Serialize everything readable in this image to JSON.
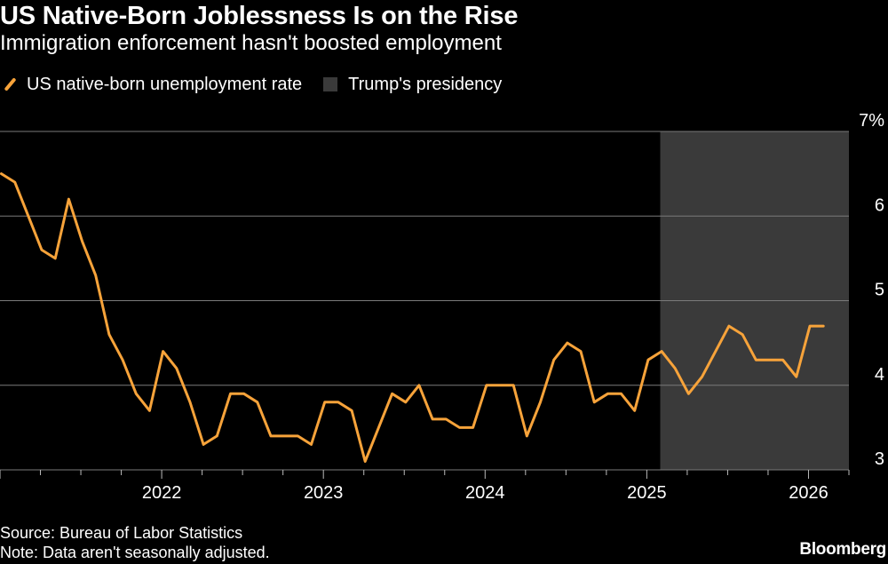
{
  "header": {
    "title": "US Native-Born Joblessness Is on the Rise",
    "subtitle": "Immigration enforcement hasn't boosted employment"
  },
  "legend": {
    "series_label": "US native-born unemployment rate",
    "shade_label": "Trump's presidency"
  },
  "footer": {
    "source": "Source: Bureau of Labor Statistics",
    "note": "Note: Data aren't seasonally adjusted.",
    "brand": "Bloomberg"
  },
  "colors": {
    "line": "#f7a33a",
    "shade": "#3a3a3a",
    "grid": "#7a7a7a",
    "background": "#000000"
  },
  "chart_data": {
    "type": "line",
    "title": "US Native-Born Joblessness Is on the Rise",
    "ylim": [
      3,
      7
    ],
    "y_ticks": [
      3,
      4,
      5,
      6,
      7
    ],
    "y_tick_labels": [
      "3",
      "4",
      "5",
      "6",
      "7%"
    ],
    "x_ticks": [
      2022,
      2023,
      2024,
      2025,
      2026
    ],
    "x_tick_labels": [
      "2022",
      "2023",
      "2024",
      "2025",
      "2026"
    ],
    "xlim": [
      2021.0,
      2026.25
    ],
    "shade_range": [
      2025.083,
      2026.25
    ],
    "series": [
      {
        "name": "US native-born unemployment rate",
        "start": [
          2021,
          1
        ],
        "values": [
          6.5,
          6.4,
          6.0,
          5.6,
          5.5,
          6.2,
          5.7,
          5.3,
          4.6,
          4.3,
          3.9,
          3.7,
          4.4,
          4.2,
          3.8,
          3.3,
          3.4,
          3.9,
          3.9,
          3.8,
          3.4,
          3.4,
          3.4,
          3.3,
          3.8,
          3.8,
          3.7,
          3.1,
          3.5,
          3.9,
          3.8,
          4.0,
          3.6,
          3.6,
          3.5,
          3.5,
          4.0,
          4.0,
          4.0,
          3.4,
          3.8,
          4.3,
          4.5,
          4.4,
          3.8,
          3.9,
          3.9,
          3.7,
          4.3,
          4.4,
          4.2,
          3.9,
          4.1,
          4.4,
          4.7,
          4.6,
          4.3,
          4.3,
          4.3,
          4.1,
          4.7,
          4.7
        ]
      }
    ]
  }
}
